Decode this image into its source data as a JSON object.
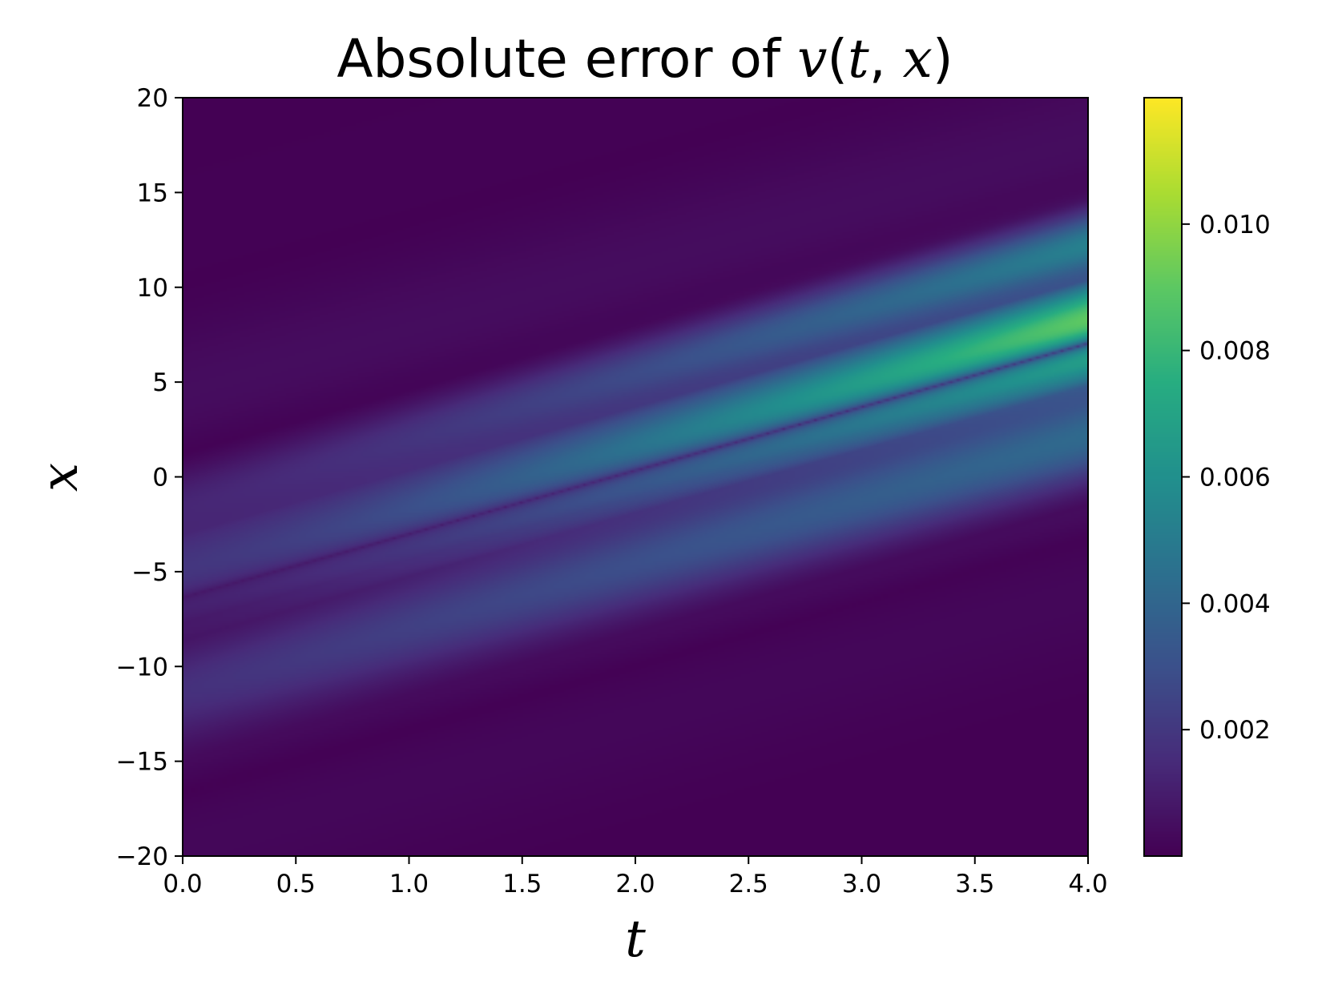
{
  "chart_data": {
    "type": "heatmap",
    "title": {
      "prefix": "Absolute error of ",
      "math": [
        "v",
        "(",
        "t",
        ", ",
        "x",
        ")"
      ]
    },
    "xlabel": "t",
    "ylabel": "x",
    "xlim": [
      0.0,
      4.0
    ],
    "ylim": [
      -20,
      20
    ],
    "x_ticks": [
      0.0,
      0.5,
      1.0,
      1.5,
      2.0,
      2.5,
      3.0,
      3.5,
      4.0
    ],
    "x_tick_labels": [
      "0.0",
      "0.5",
      "1.0",
      "1.5",
      "2.0",
      "2.5",
      "3.0",
      "3.5",
      "4.0"
    ],
    "y_ticks": [
      20,
      15,
      10,
      5,
      0,
      -5,
      -10,
      -15,
      -20
    ],
    "y_tick_labels": [
      "20",
      "15",
      "10",
      "5",
      "0",
      "−5",
      "−10",
      "−15",
      "−20"
    ],
    "colormap": "viridis",
    "colorbar": {
      "vmin": 0.0,
      "vmax": 0.012,
      "ticks": [
        0.002,
        0.004,
        0.006,
        0.008,
        0.01
      ],
      "tick_labels": [
        "0.002",
        "0.004",
        "0.006",
        "0.008",
        "0.010"
      ]
    },
    "error_field": {
      "description_of_structure": "bright bands along a travelling wave centered near x = -6 + 3.3 t, largest error at t = 4",
      "center_x_at_t0": -6.0,
      "speed": 3.35,
      "peak_error_at_t4": 0.0118
    }
  }
}
